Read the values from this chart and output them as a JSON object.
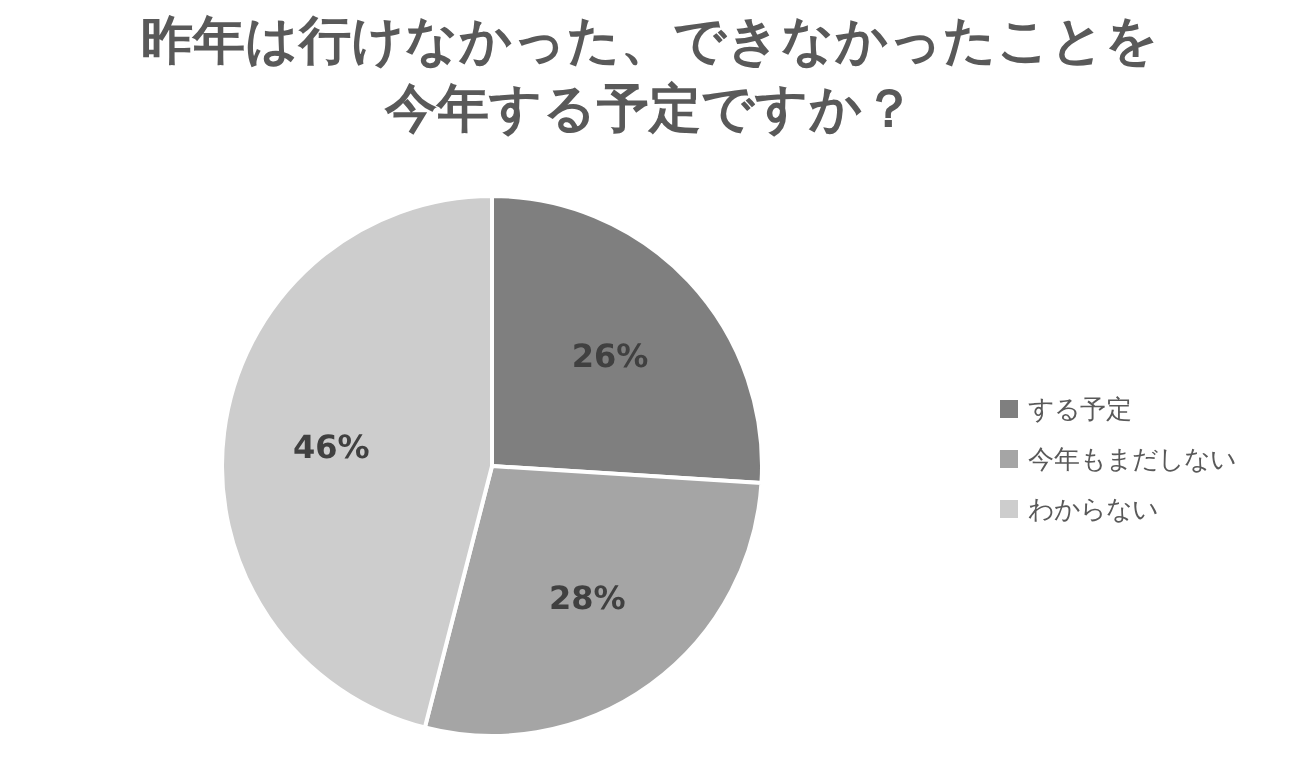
{
  "chart_data": {
    "type": "pie",
    "title": "昨年は行けなかった、できなかったことを今年する予定ですか？",
    "categories": [
      "する予定",
      "今年もまだしない",
      "わからない"
    ],
    "values": [
      26,
      28,
      46
    ],
    "colors": [
      "#7f7f7f",
      "#a5a5a5",
      "#cdcdcd"
    ],
    "value_labels": [
      "26%",
      "28%",
      "46%"
    ],
    "legend": "right"
  }
}
